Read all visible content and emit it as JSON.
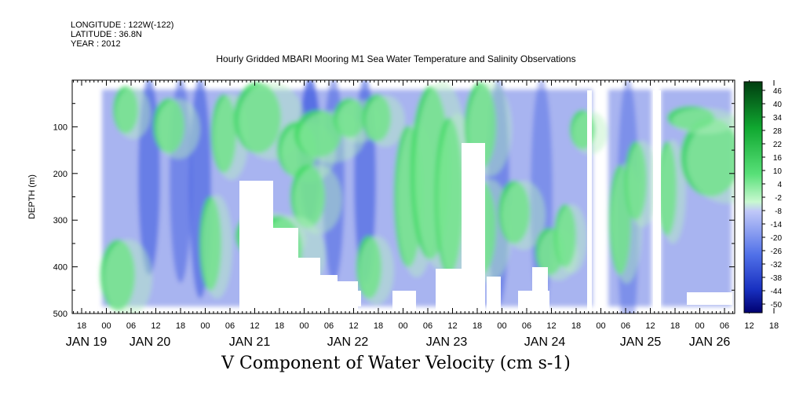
{
  "header": {
    "longitude": "LONGITUDE : 122W(-122)",
    "latitude": "LATITUDE : 36.8N",
    "year": "YEAR : 2012"
  },
  "chart_data": {
    "type": "heatmap",
    "title": "Hourly Gridded MBARI Mooring M1 Sea Water Temperature and Salinity Observations",
    "bottom_title": "V Component of Water Velocity (cm s-1)",
    "ylabel": "DEPTH (m)",
    "ylim": [
      500,
      0
    ],
    "yticks": [
      100,
      200,
      300,
      400,
      500
    ],
    "x_hour_ticks": [
      "18",
      "00",
      "06",
      "12",
      "18",
      "00",
      "06",
      "12",
      "18",
      "00",
      "06",
      "12",
      "18",
      "00",
      "06",
      "12",
      "18",
      "00",
      "06",
      "12",
      "18",
      "00",
      "06",
      "12",
      "18",
      "00",
      "06",
      "12",
      "18",
      "00",
      "06"
    ],
    "x_day_labels": [
      "JAN 19",
      "JAN 20",
      "JAN 21",
      "JAN 22",
      "JAN 23",
      "JAN 24",
      "JAN 25",
      "JAN 26"
    ],
    "colorbar_labels": [
      "46",
      "40",
      "34",
      "28",
      "22",
      "16",
      "10",
      "4",
      "-2",
      "-8",
      "-14",
      "-20",
      "-26",
      "-32",
      "-38",
      "-44",
      "-50"
    ],
    "colorbar_range": [
      -50,
      46
    ],
    "colors": {
      "strong_negative": "#000080",
      "negative": "#3d5ae0",
      "weak_negative": "#a8b4f0",
      "weak_positive": "#b8f0c0",
      "positive": "#38d860",
      "strong_positive": "#003d10"
    }
  }
}
